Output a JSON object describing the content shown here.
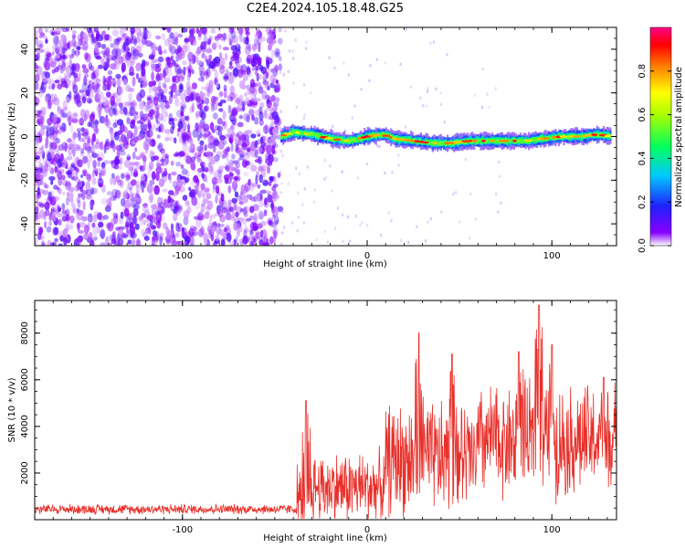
{
  "figure": {
    "title": "C2E4.2024.105.18.48.G25"
  },
  "chart_data": [
    {
      "type": "heatmap",
      "name": "spectrogram",
      "xlabel": "Height of straight line (km)",
      "ylabel": "Frequency (Hz)",
      "xlim": [
        -180,
        135
      ],
      "ylim": [
        -50,
        50
      ],
      "x_ticks": [
        -100,
        0,
        100
      ],
      "y_ticks": [
        -40,
        -20,
        0,
        20,
        40
      ],
      "noise_region_x": [
        -180,
        -47
      ],
      "signal_track": {
        "x": [
          -47,
          -40,
          -30,
          -20,
          -10,
          0,
          8,
          15,
          25,
          35,
          45,
          55,
          65,
          75,
          85,
          95,
          105,
          115,
          125,
          132
        ],
        "frequency": [
          0,
          2,
          1,
          -1,
          -2,
          0,
          1,
          -1,
          -2,
          -3,
          -3,
          -2,
          -2,
          -2,
          -2,
          -1,
          0,
          0,
          1,
          0
        ]
      },
      "colorbar": {
        "label": "Normalized spectral amplitude",
        "range": [
          0,
          1
        ],
        "ticks": [
          0.0,
          0.2,
          0.4,
          0.6,
          0.8
        ]
      }
    },
    {
      "type": "line",
      "name": "snr",
      "xlabel": "Height of straight line (km)",
      "ylabel": "SNR (10 * v/v)",
      "xlim": [
        -180,
        135
      ],
      "ylim": [
        0,
        9400
      ],
      "x_ticks": [
        -100,
        0,
        100
      ],
      "y_ticks": [
        2000,
        4000,
        6000,
        8000
      ],
      "color": "#e8302a",
      "segments": [
        {
          "x_start": -180,
          "x_end": -38,
          "base": 450,
          "amp": 250
        },
        {
          "x_start": -38,
          "x_end": -30,
          "base": 900,
          "amp": 1800
        },
        {
          "x_start": -30,
          "x_end": 10,
          "base": 1400,
          "amp": 1800
        },
        {
          "x_start": 10,
          "x_end": 60,
          "base": 2600,
          "amp": 2800
        },
        {
          "x_start": 60,
          "x_end": 135,
          "base": 3400,
          "amp": 2800
        }
      ],
      "peaks": [
        {
          "x": -33,
          "y": 5100
        },
        {
          "x": 28,
          "y": 8000
        },
        {
          "x": 46,
          "y": 7100
        },
        {
          "x": 82,
          "y": 7200
        },
        {
          "x": 93,
          "y": 9200
        },
        {
          "x": 100,
          "y": 7500
        },
        {
          "x": 128,
          "y": 6100
        }
      ]
    }
  ]
}
